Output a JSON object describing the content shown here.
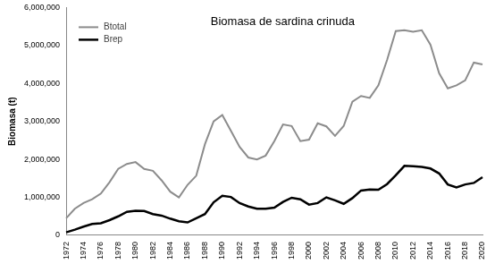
{
  "chart_data": {
    "type": "line",
    "title": "Biomasa de sardina crinuda",
    "y_label": "Biomasa (t)",
    "categories": [
      "1972",
      null,
      "1974",
      null,
      "1976",
      null,
      "1978",
      null,
      "1980",
      null,
      "1982",
      null,
      "1984",
      null,
      "1986",
      null,
      "1988",
      null,
      "1990",
      null,
      "1992",
      null,
      "1994",
      null,
      "1996",
      null,
      "1998",
      null,
      "2000",
      null,
      "2002",
      null,
      "2004",
      null,
      "2006",
      null,
      "2008",
      null,
      "2010",
      null,
      "2012",
      null,
      "2014",
      null,
      "2016",
      null,
      "2018",
      null,
      "2020"
    ],
    "series": [
      {
        "name": "Btotal",
        "color": "#8c8c8c",
        "values": [
          450000,
          700000,
          850000,
          950000,
          1100000,
          1400000,
          1750000,
          1880000,
          1930000,
          1750000,
          1700000,
          1450000,
          1150000,
          1000000,
          1330000,
          1570000,
          2400000,
          3000000,
          3170000,
          2750000,
          2330000,
          2050000,
          2000000,
          2100000,
          2480000,
          2920000,
          2880000,
          2480000,
          2520000,
          2950000,
          2870000,
          2620000,
          2880000,
          3520000,
          3670000,
          3620000,
          3950000,
          4620000,
          5380000,
          5400000,
          5360000,
          5400000,
          5020000,
          4270000,
          3870000,
          3950000,
          4080000,
          4550000,
          4500000
        ]
      },
      {
        "name": "Brep",
        "color": "#000000",
        "values": [
          80000,
          150000,
          230000,
          300000,
          320000,
          400000,
          500000,
          620000,
          650000,
          640000,
          560000,
          520000,
          440000,
          370000,
          340000,
          450000,
          560000,
          870000,
          1040000,
          1010000,
          850000,
          760000,
          700000,
          700000,
          730000,
          880000,
          990000,
          950000,
          810000,
          850000,
          1000000,
          920000,
          830000,
          980000,
          1180000,
          1210000,
          1200000,
          1350000,
          1580000,
          1830000,
          1820000,
          1800000,
          1760000,
          1630000,
          1340000,
          1260000,
          1340000,
          1380000,
          1530000
        ]
      }
    ],
    "ylim": [
      0,
      6000000
    ],
    "yticks": [
      0,
      {
        "value": 1000000,
        "label": "1,000,000"
      },
      {
        "value": 2000000,
        "label": "2,000,000"
      },
      {
        "value": 3000000,
        "label": "3,000,000"
      },
      {
        "value": 4000000,
        "label": "4,000,000"
      },
      {
        "value": 5000000,
        "label": "5,000,000"
      },
      {
        "value": 6000000,
        "label": "6,000,000"
      }
    ],
    "grid": false,
    "legend": "upper left"
  }
}
